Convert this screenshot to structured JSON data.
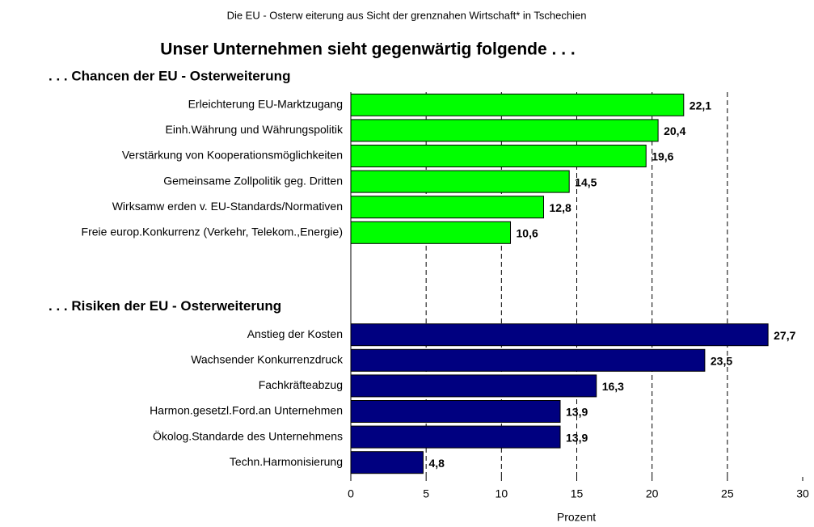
{
  "chart_data": {
    "type": "grouped-hbar",
    "title": "Die  EU - Osterw eiterung aus Sicht der grenznahen Wirtschaft* in Tschechien",
    "subtitle": "Unser Unternehmen sieht gegenwärtig folgende . . .",
    "x_label": "Prozent",
    "xlim": [
      0,
      30
    ],
    "xticks": [
      0,
      5,
      10,
      15,
      20,
      25,
      30
    ],
    "grid": true,
    "groups": [
      {
        "name": ". . .  Chancen der EU - Osterweiterung",
        "color": "#00ff00",
        "categories": [
          "Erleichterung EU-Marktzugang",
          "Einh.Währung und Währungspolitik",
          "Verstärkung von Kooperationsmöglichkeiten",
          "Gemeinsame Zollpolitik geg. Dritten",
          "Wirksamw erden v. EU-Standards/Normativen",
          "Freie europ.Konkurrenz (Verkehr, Telekom.,Energie)"
        ],
        "values": [
          22.1,
          20.4,
          19.6,
          14.5,
          12.8,
          10.6
        ],
        "value_labels": [
          "22,1",
          "20,4",
          "19,6",
          "14,5",
          "12,8",
          "10,6"
        ]
      },
      {
        "name": ". . .  Risiken der EU - Osterweiterung",
        "color": "#000080",
        "categories": [
          "Anstieg der Kosten",
          "Wachsender Konkurrenzdruck",
          "Fachkräfteabzug",
          "Harmon.gesetzl.Ford.an Unternehmen",
          "Ökolog.Standarde des Unternehmens",
          "Techn.Harmonisierung"
        ],
        "values": [
          27.7,
          23.5,
          16.3,
          13.9,
          13.9,
          4.8
        ],
        "value_labels": [
          "27,7",
          "23,5",
          "16,3",
          "13,9",
          "13,9",
          "4,8"
        ]
      }
    ]
  }
}
